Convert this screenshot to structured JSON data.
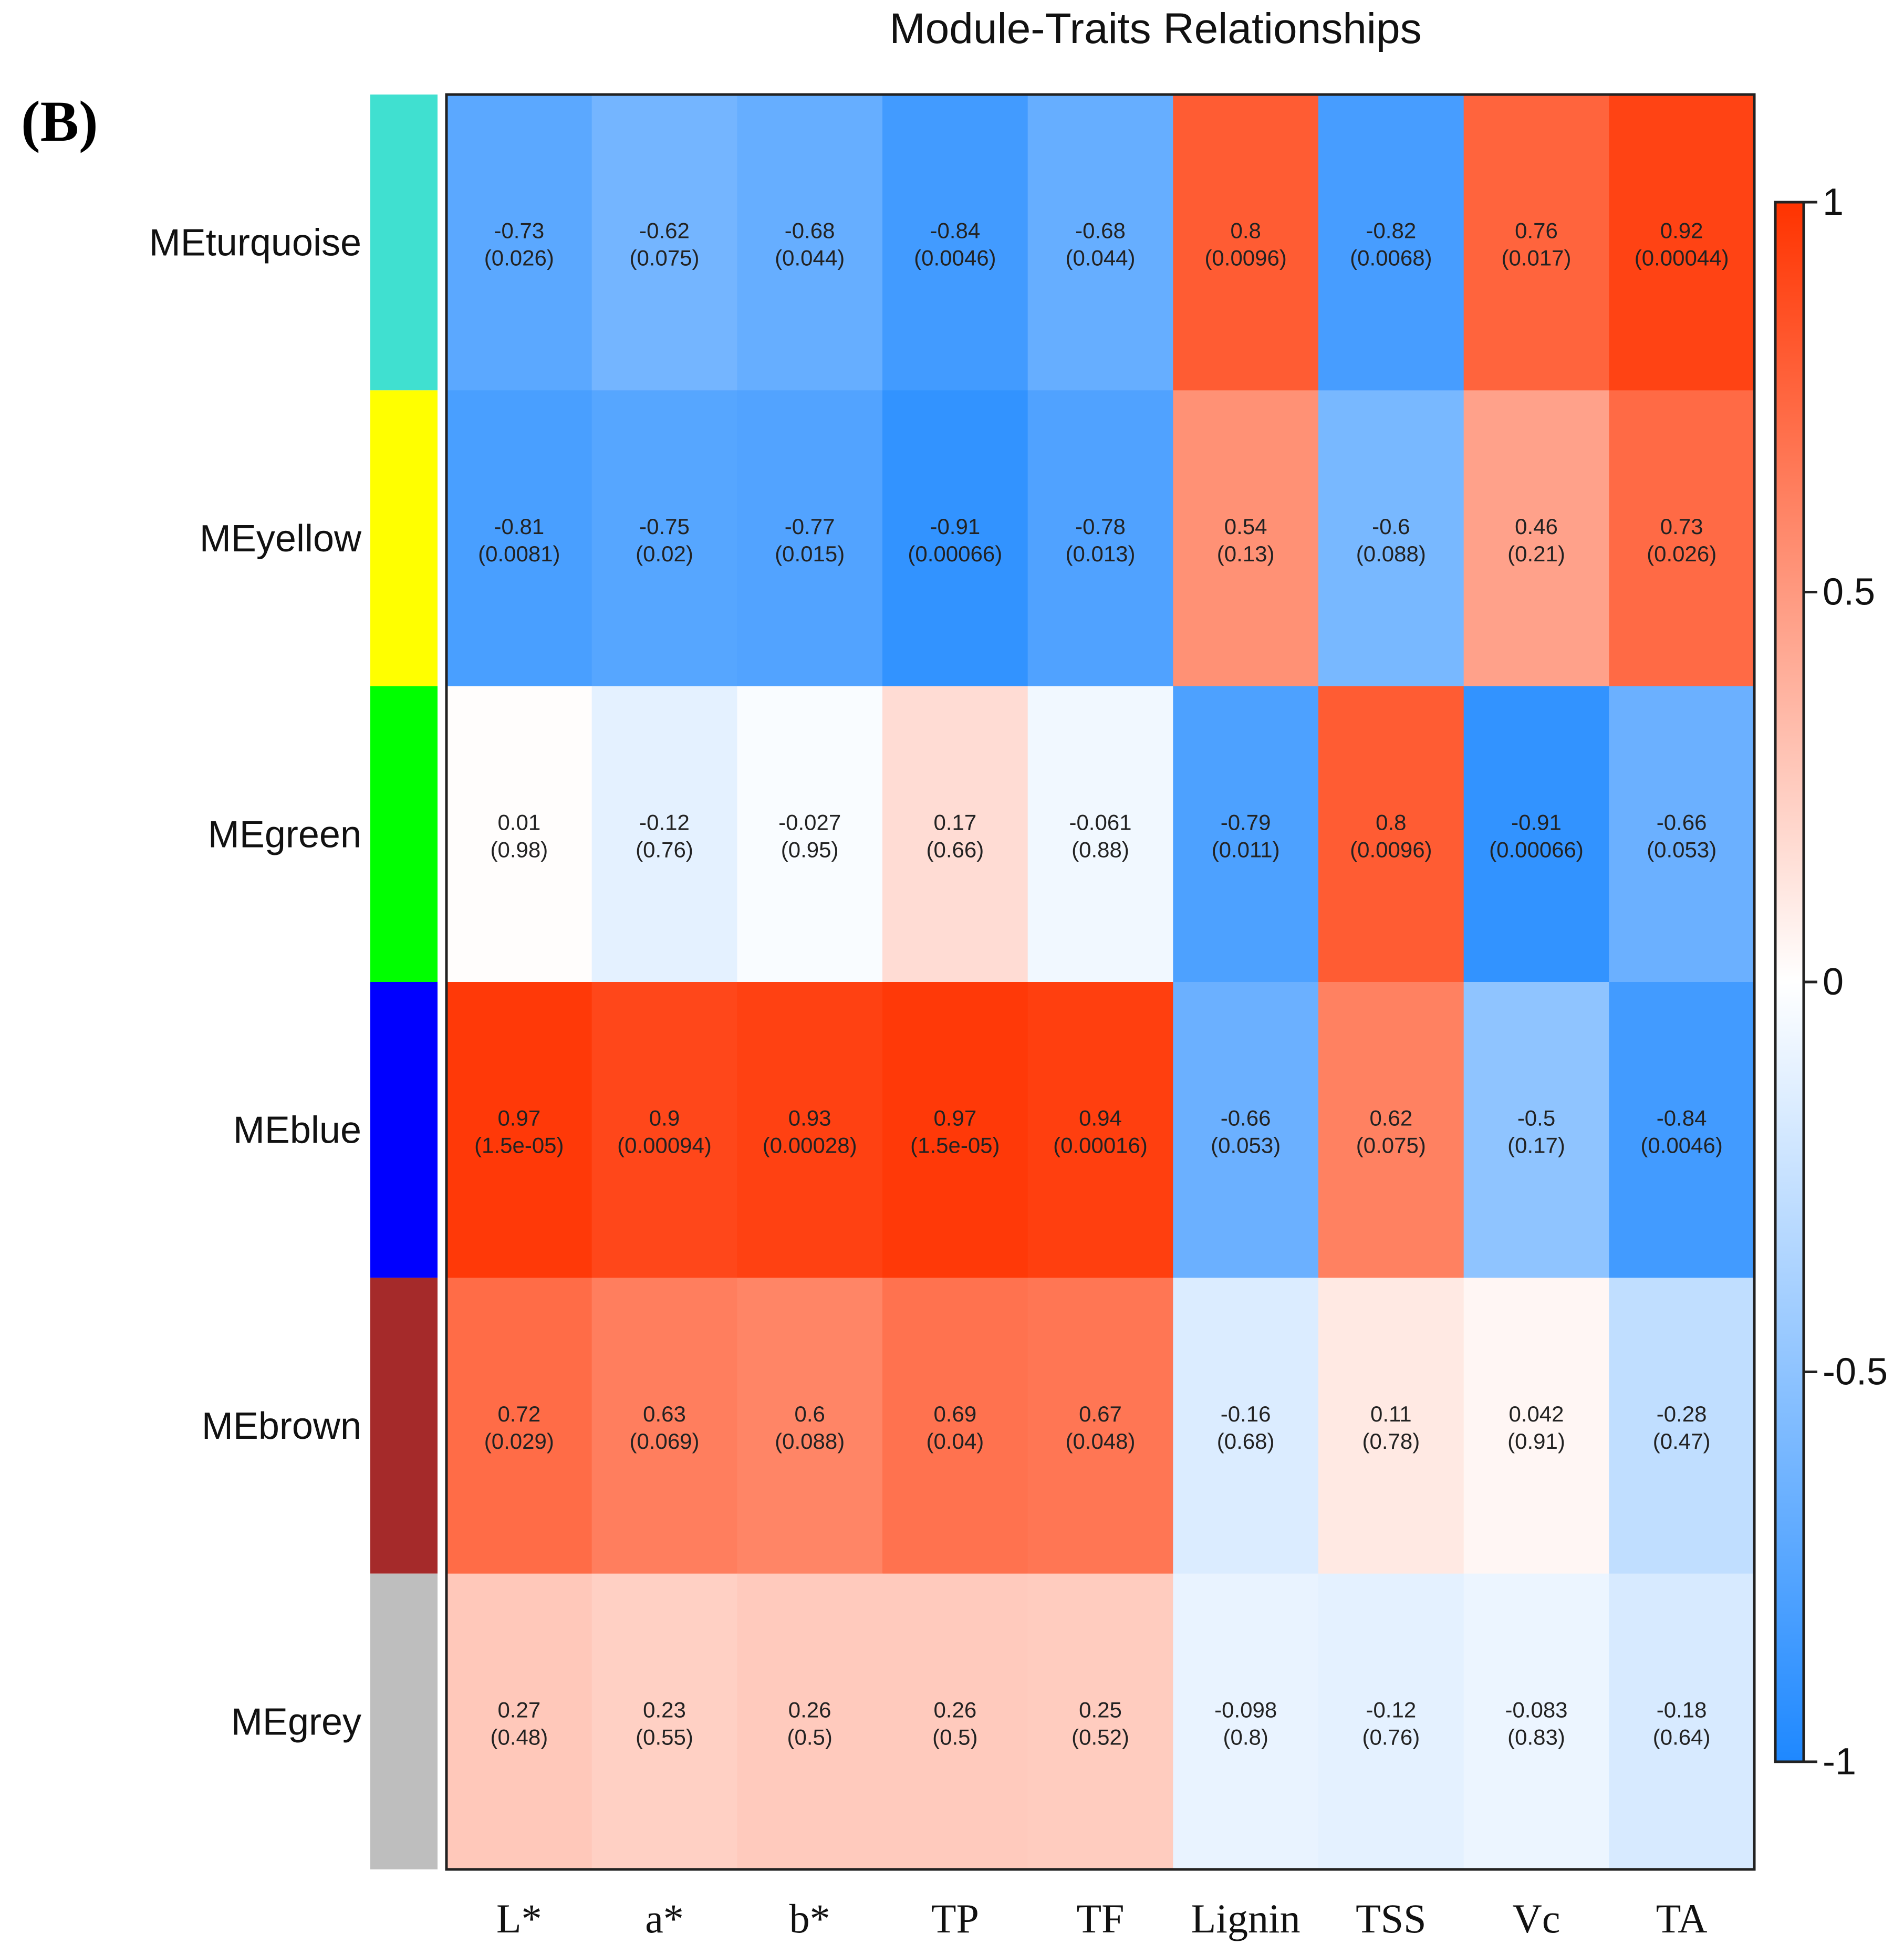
{
  "panel_label": "(B)",
  "chart_data": {
    "type": "heatmap",
    "title": "Module-Traits Relationships",
    "rows": [
      "MEturquoise",
      "MEyellow",
      "MEgreen",
      "MEblue",
      "MEbrown",
      "MEgrey"
    ],
    "row_colors": [
      "#40E0D0",
      "#FFFF00",
      "#00FF00",
      "#0000FF",
      "#A52A2A",
      "#BEBEBE"
    ],
    "columns": [
      "L*",
      "a*",
      "b*",
      "TP",
      "TF",
      "Lignin",
      "TSS",
      "Vc",
      "TA"
    ],
    "correlations": [
      [
        -0.73,
        -0.62,
        -0.68,
        -0.84,
        -0.68,
        0.8,
        -0.82,
        0.76,
        0.92
      ],
      [
        -0.81,
        -0.75,
        -0.77,
        -0.91,
        -0.78,
        0.54,
        -0.6,
        0.46,
        0.73
      ],
      [
        0.01,
        -0.12,
        -0.027,
        0.17,
        -0.061,
        -0.79,
        0.8,
        -0.91,
        -0.66
      ],
      [
        0.97,
        0.9,
        0.93,
        0.97,
        0.94,
        -0.66,
        0.62,
        -0.5,
        -0.84
      ],
      [
        0.72,
        0.63,
        0.6,
        0.69,
        0.67,
        -0.16,
        0.11,
        0.042,
        -0.28
      ],
      [
        0.27,
        0.23,
        0.26,
        0.26,
        0.25,
        -0.098,
        -0.12,
        -0.083,
        -0.18
      ]
    ],
    "pvalues": [
      [
        "0.026",
        "0.075",
        "0.044",
        "0.0046",
        "0.044",
        "0.0096",
        "0.0068",
        "0.017",
        "0.00044"
      ],
      [
        "0.0081",
        "0.02",
        "0.015",
        "0.00066",
        "0.013",
        "0.13",
        "0.088",
        "0.21",
        "0.026"
      ],
      [
        "0.98",
        "0.76",
        "0.95",
        "0.66",
        "0.88",
        "0.011",
        "0.0096",
        "0.00066",
        "0.053"
      ],
      [
        "1.5e-05",
        "0.00094",
        "0.00028",
        "1.5e-05",
        "0.00016",
        "0.053",
        "0.075",
        "0.17",
        "0.0046"
      ],
      [
        "0.029",
        "0.069",
        "0.088",
        "0.04",
        "0.048",
        "0.68",
        "0.78",
        "0.91",
        "0.47"
      ],
      [
        "0.48",
        "0.55",
        "0.5",
        "0.5",
        "0.52",
        "0.8",
        "0.76",
        "0.83",
        "0.64"
      ]
    ],
    "colorbar": {
      "range": [
        -1,
        1
      ],
      "ticks": [
        "1",
        "0.5",
        "0",
        "-0.5",
        "-1"
      ],
      "tick_values": [
        1,
        0.5,
        0,
        -0.5,
        -1
      ],
      "low_color": "#1E88FF",
      "mid_color": "#FFFFFF",
      "high_color": "#FF3300"
    }
  }
}
